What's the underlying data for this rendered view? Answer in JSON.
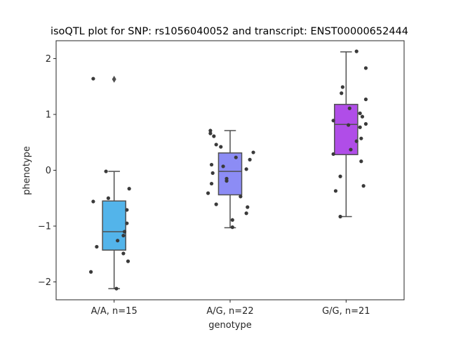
{
  "chart_data": {
    "type": "box",
    "title": "isoQTL plot for SNP: rs1056040052 and transcript: ENST00000652444",
    "xlabel": "genotype",
    "ylabel": "phenotype",
    "ylim": [
      -2.32,
      2.32
    ],
    "yticks": [
      -2,
      -1,
      0,
      1,
      2
    ],
    "yticklabels": [
      "−2",
      "−1",
      "0",
      "1",
      "2"
    ],
    "categories": [
      "A/A, n=15",
      "A/G, n=22",
      "G/G, n=21"
    ],
    "colors": [
      "#53b4ea",
      "#8c8cf5",
      "#b04de8"
    ],
    "point_color": "#3a3a3a",
    "line_color": "#505050",
    "grid": false,
    "boxes": [
      {
        "category": "A/A, n=15",
        "q1": -1.43,
        "median": -1.1,
        "q3": -0.55,
        "whisker_low": -2.12,
        "whisker_high": -0.02,
        "outliers": [
          1.63
        ],
        "points": [
          [
            -0.18,
            1.64
          ],
          [
            -0.07,
            -0.02
          ],
          [
            0.13,
            -0.33
          ],
          [
            -0.18,
            -0.56
          ],
          [
            -0.05,
            -0.5
          ],
          [
            0.11,
            -0.71
          ],
          [
            0.11,
            -0.95
          ],
          [
            0.09,
            -1.1
          ],
          [
            0.08,
            -1.17
          ],
          [
            0.03,
            -1.26
          ],
          [
            -0.15,
            -1.37
          ],
          [
            0.08,
            -1.49
          ],
          [
            0.12,
            -1.63
          ],
          [
            -0.2,
            -1.82
          ],
          [
            0.02,
            -2.12
          ]
        ]
      },
      {
        "category": "A/G, n=22",
        "q1": -0.44,
        "median": -0.02,
        "q3": 0.31,
        "whisker_low": -1.03,
        "whisker_high": 0.71,
        "outliers": [],
        "points": [
          [
            -0.17,
            0.71
          ],
          [
            -0.17,
            0.66
          ],
          [
            -0.14,
            0.61
          ],
          [
            -0.12,
            0.46
          ],
          [
            -0.08,
            0.42
          ],
          [
            0.2,
            0.32
          ],
          [
            0.05,
            0.23
          ],
          [
            0.17,
            0.19
          ],
          [
            -0.16,
            0.1
          ],
          [
            -0.06,
            0.07
          ],
          [
            0.14,
            0.02
          ],
          [
            -0.15,
            -0.05
          ],
          [
            -0.03,
            -0.15
          ],
          [
            -0.03,
            -0.19
          ],
          [
            -0.16,
            -0.24
          ],
          [
            -0.19,
            -0.41
          ],
          [
            0.09,
            -0.47
          ],
          [
            -0.12,
            -0.61
          ],
          [
            0.15,
            -0.66
          ],
          [
            0.14,
            -0.77
          ],
          [
            0.02,
            -0.89
          ],
          [
            0.02,
            -1.02
          ]
        ]
      },
      {
        "category": "G/G, n=21",
        "q1": 0.28,
        "median": 0.82,
        "q3": 1.18,
        "whisker_low": -0.83,
        "whisker_high": 2.12,
        "outliers": [],
        "points": [
          [
            0.09,
            2.13
          ],
          [
            0.17,
            1.83
          ],
          [
            -0.03,
            1.49
          ],
          [
            -0.04,
            1.38
          ],
          [
            0.17,
            1.27
          ],
          [
            0.03,
            1.11
          ],
          [
            0.12,
            1.02
          ],
          [
            0.14,
            0.96
          ],
          [
            -0.11,
            0.89
          ],
          [
            0.17,
            0.83
          ],
          [
            0.12,
            0.77
          ],
          [
            0.13,
            0.57
          ],
          [
            0.09,
            0.52
          ],
          [
            0.04,
            0.37
          ],
          [
            -0.11,
            0.29
          ],
          [
            0.13,
            0.16
          ],
          [
            -0.05,
            -0.11
          ],
          [
            0.15,
            -0.28
          ],
          [
            -0.09,
            -0.37
          ],
          [
            -0.05,
            -0.83
          ],
          [
            0.02,
            0.81
          ]
        ]
      }
    ]
  }
}
